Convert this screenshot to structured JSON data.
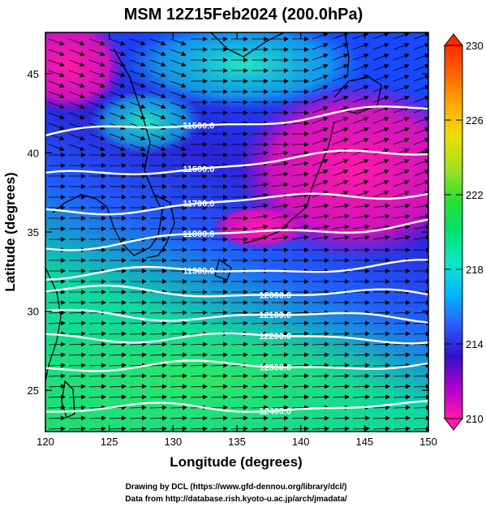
{
  "title": "MSM 12Z15Feb2024 (200.0hPa)",
  "x_axis": {
    "label": "Longitude (degrees)",
    "range": [
      120,
      150
    ],
    "ticks": [
      "120",
      "125",
      "130",
      "135",
      "140",
      "145",
      "150"
    ]
  },
  "y_axis": {
    "label": "Latitude  (degrees)",
    "range": [
      22.4,
      47.6
    ],
    "ticks": [
      "25",
      "30",
      "35",
      "40",
      "45"
    ]
  },
  "colorbar": {
    "range": [
      210,
      230
    ],
    "ticks": [
      "210",
      "214",
      "218",
      "222",
      "226",
      "230"
    ],
    "colors": [
      "#ff1aa8",
      "#b000d0",
      "#3010c8",
      "#2f5bff",
      "#00b8ff",
      "#10e6c8",
      "#00e070",
      "#28e030",
      "#9fe020",
      "#e8e000",
      "#ffb000",
      "#ff6a00",
      "#ff2a00"
    ]
  },
  "contours": [
    {
      "label": "11500.0",
      "lat_w": 41.1,
      "lat_e": 42.8
    },
    {
      "label": "11600.0",
      "lat_w": 38.4,
      "lat_e": 40.2
    },
    {
      "label": "11700.0",
      "lat_w": 36.2,
      "lat_e": 37.6
    },
    {
      "label": "11800.0",
      "lat_w": 34.1,
      "lat_e": 35.6
    },
    {
      "label": "11900.0",
      "lat_w": 32.3,
      "lat_e": 32.9
    },
    {
      "label": "12000.0",
      "lat_w": 31.3,
      "lat_e": 31.0
    },
    {
      "label": "12100.0",
      "lat_w": 29.8,
      "lat_e": 29.6
    },
    {
      "label": "12200.0",
      "lat_w": 28.4,
      "lat_e": 28.3
    },
    {
      "label": "12300.0",
      "lat_w": 26.5,
      "lat_e": 26.6
    },
    {
      "label": "12400.0",
      "lat_w": 23.8,
      "lat_e": 24.0
    }
  ],
  "footer": {
    "line1": "Drawing by DCL (https://www.gfd-dennou.org/library/dcl/)",
    "line2": "Data from http://database.rish.kyoto-u.ac.jp/arch/jmadata/"
  }
}
